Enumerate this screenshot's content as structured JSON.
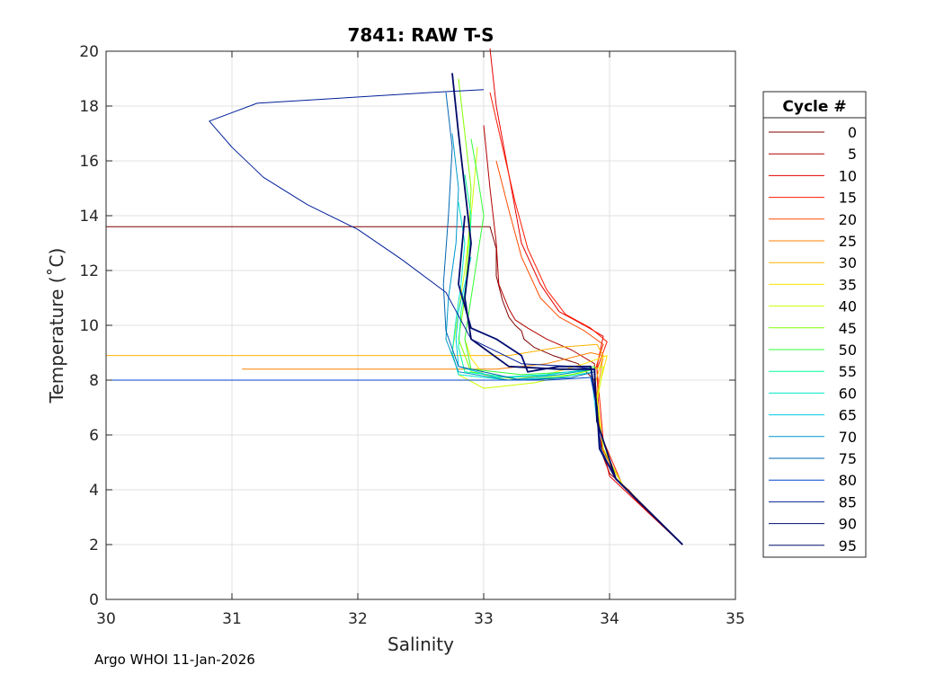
{
  "chart_data": {
    "type": "line",
    "title": "7841: RAW T-S",
    "xlabel": "Salinity",
    "ylabel": "Temperature (˚C)",
    "xlim": [
      30,
      35
    ],
    "ylim": [
      0,
      20
    ],
    "xticks": [
      30,
      31,
      32,
      33,
      34,
      35
    ],
    "yticks": [
      0,
      2,
      4,
      6,
      8,
      10,
      12,
      14,
      16,
      18,
      20
    ],
    "grid": true,
    "legend_title": "Cycle #",
    "legend_position": "right",
    "series": [
      {
        "name": "0",
        "color": "#7f0000",
        "x": [
          30.0,
          33.05,
          33.1,
          33.1,
          33.15,
          33.2,
          33.25,
          33.3,
          33.32,
          33.4,
          33.55,
          33.75,
          33.88,
          33.9,
          33.95,
          34.0,
          34.15,
          34.35,
          34.58
        ],
        "y": [
          13.6,
          13.6,
          12.8,
          11.8,
          10.9,
          10.3,
          10.0,
          9.8,
          9.5,
          9.2,
          8.9,
          8.6,
          8.0,
          6.5,
          5.2,
          4.6,
          4.0,
          3.0,
          2.0
        ]
      },
      {
        "name": "5",
        "color": "#b20000",
        "x": [
          33.0,
          33.05,
          33.1,
          33.12,
          33.2,
          33.25,
          33.35,
          33.5,
          33.7,
          33.88,
          33.9,
          33.95,
          34.05,
          34.3,
          34.58
        ],
        "y": [
          17.3,
          15.0,
          13.0,
          11.5,
          10.6,
          10.2,
          9.9,
          9.5,
          9.1,
          8.6,
          7.0,
          5.5,
          4.4,
          3.2,
          2.0
        ]
      },
      {
        "name": "10",
        "color": "#e60000",
        "x": [
          33.05,
          33.1,
          33.2,
          33.3,
          33.45,
          33.6,
          33.8,
          33.95,
          33.9,
          33.92,
          34.0,
          34.3,
          34.58
        ],
        "y": [
          20.1,
          18.0,
          15.5,
          13.0,
          11.5,
          10.5,
          10.0,
          9.6,
          8.5,
          6.0,
          4.5,
          3.2,
          2.0
        ]
      },
      {
        "name": "15",
        "color": "#ff1a00",
        "x": [
          33.05,
          33.15,
          33.25,
          33.35,
          33.5,
          33.65,
          33.85,
          33.98,
          33.9,
          33.95,
          34.1,
          34.58
        ],
        "y": [
          18.5,
          16.5,
          14.5,
          12.8,
          11.3,
          10.4,
          9.9,
          9.4,
          8.4,
          5.8,
          4.2,
          2.0
        ]
      },
      {
        "name": "20",
        "color": "#ff4d00",
        "x": [
          33.1,
          33.2,
          33.3,
          33.45,
          33.6,
          33.8,
          33.95,
          33.88,
          33.92,
          34.05,
          34.58
        ],
        "y": [
          16.0,
          14.2,
          12.5,
          11.0,
          10.3,
          9.8,
          9.3,
          8.3,
          6.2,
          4.4,
          2.0
        ]
      },
      {
        "name": "25",
        "color": "#ff8000",
        "x": [
          31.08,
          33.1,
          33.5,
          33.85,
          33.95,
          33.9,
          33.95,
          34.1,
          34.58
        ],
        "y": [
          8.4,
          8.4,
          8.6,
          9.0,
          8.9,
          7.5,
          5.5,
          4.2,
          2.0
        ]
      },
      {
        "name": "30",
        "color": "#ffb300",
        "x": [
          30.0,
          33.2,
          33.6,
          33.9,
          33.95,
          33.88,
          33.92,
          34.1,
          34.58
        ],
        "y": [
          8.9,
          8.9,
          9.2,
          9.3,
          8.9,
          7.8,
          5.6,
          4.2,
          2.0
        ]
      },
      {
        "name": "35",
        "color": "#ffe600",
        "x": [
          32.85,
          32.9,
          33.0,
          33.2,
          33.5,
          33.8,
          33.98,
          33.9,
          33.95,
          34.1,
          34.58
        ],
        "y": [
          9.5,
          8.8,
          8.2,
          8.0,
          8.2,
          8.6,
          8.9,
          7.4,
          5.5,
          4.2,
          2.0
        ]
      },
      {
        "name": "40",
        "color": "#ccff00",
        "x": [
          32.95,
          32.9,
          32.85,
          32.8,
          32.75,
          32.8,
          33.0,
          33.4,
          33.8,
          33.95,
          33.9,
          33.95,
          34.1,
          34.58
        ],
        "y": [
          16.5,
          14.0,
          12.0,
          10.5,
          9.0,
          8.2,
          7.7,
          7.9,
          8.3,
          8.5,
          7.2,
          5.5,
          4.2,
          2.0
        ]
      },
      {
        "name": "45",
        "color": "#80ff00",
        "x": [
          32.8,
          32.85,
          32.9,
          32.88,
          32.85,
          32.8,
          32.9,
          33.3,
          33.7,
          33.88,
          33.9,
          34.05,
          34.58
        ],
        "y": [
          19.0,
          17.0,
          15.0,
          13.0,
          11.0,
          9.5,
          8.3,
          8.0,
          8.2,
          8.4,
          6.5,
          4.4,
          2.0
        ]
      },
      {
        "name": "50",
        "color": "#33ff33",
        "x": [
          32.9,
          32.95,
          33.0,
          32.95,
          32.9,
          32.85,
          32.9,
          33.3,
          33.7,
          33.88,
          33.9,
          34.05,
          34.58
        ],
        "y": [
          16.8,
          15.5,
          14.0,
          12.5,
          11.0,
          9.5,
          8.4,
          8.2,
          8.3,
          8.5,
          6.5,
          4.4,
          2.0
        ]
      },
      {
        "name": "55",
        "color": "#00ff99",
        "x": [
          32.85,
          32.9,
          32.88,
          32.82,
          32.8,
          32.85,
          33.2,
          33.6,
          33.88,
          33.9,
          34.05,
          34.58
        ],
        "y": [
          15.5,
          14.0,
          12.0,
          10.5,
          9.2,
          8.3,
          8.1,
          8.2,
          8.4,
          6.5,
          4.4,
          2.0
        ]
      },
      {
        "name": "60",
        "color": "#00e6cc",
        "x": [
          32.8,
          32.85,
          32.82,
          32.78,
          32.75,
          32.8,
          33.2,
          33.6,
          33.88,
          33.9,
          34.05,
          34.58
        ],
        "y": [
          14.5,
          13.0,
          11.5,
          10.2,
          9.0,
          8.2,
          8.0,
          8.1,
          8.3,
          6.5,
          4.4,
          2.0
        ]
      },
      {
        "name": "65",
        "color": "#00cce6",
        "x": [
          32.9,
          32.85,
          32.8,
          32.78,
          32.8,
          33.1,
          33.5,
          33.85,
          33.9,
          34.05,
          34.58
        ],
        "y": [
          12.5,
          11.5,
          10.5,
          9.5,
          8.5,
          8.1,
          8.2,
          8.4,
          6.5,
          4.4,
          2.0
        ]
      },
      {
        "name": "70",
        "color": "#0099cc",
        "x": [
          32.75,
          32.8,
          32.78,
          32.72,
          32.7,
          32.8,
          33.2,
          33.6,
          33.88,
          33.9,
          34.05,
          34.58
        ],
        "y": [
          17.0,
          15.0,
          13.0,
          11.0,
          9.5,
          8.3,
          8.0,
          8.2,
          8.4,
          6.5,
          4.4,
          2.0
        ]
      },
      {
        "name": "75",
        "color": "#0066b3",
        "x": [
          32.7,
          32.75,
          32.72,
          32.68,
          32.7,
          32.8,
          33.3,
          33.7,
          33.88,
          33.9,
          34.05,
          34.58
        ],
        "y": [
          18.5,
          16.5,
          14.0,
          11.5,
          9.8,
          8.5,
          8.0,
          8.1,
          8.3,
          6.5,
          4.4,
          2.0
        ]
      },
      {
        "name": "80",
        "color": "#0044cc",
        "x": [
          30.0,
          32.8,
          33.0,
          33.5,
          33.85,
          33.9,
          33.93,
          34.05,
          34.58
        ],
        "y": [
          8.0,
          8.0,
          8.0,
          8.0,
          8.1,
          7.0,
          5.5,
          4.4,
          2.0
        ]
      },
      {
        "name": "85",
        "color": "#001f99",
        "x": [
          33.0,
          32.6,
          31.2,
          30.82,
          31.0,
          31.25,
          31.6,
          32.0,
          32.35,
          32.7,
          32.9,
          33.3,
          33.7,
          33.88,
          33.9,
          34.05,
          34.58
        ],
        "y": [
          18.6,
          18.5,
          18.1,
          17.45,
          16.5,
          15.4,
          14.4,
          13.5,
          12.4,
          11.2,
          9.5,
          8.6,
          8.5,
          8.4,
          6.5,
          4.4,
          2.0
        ]
      },
      {
        "name": "90",
        "color": "#000d73",
        "x": [
          32.85,
          32.8,
          32.9,
          33.1,
          33.3,
          33.35,
          33.6,
          33.85,
          33.9,
          33.92,
          34.05,
          34.58
        ],
        "y": [
          14.0,
          11.5,
          9.9,
          9.5,
          8.9,
          8.3,
          8.5,
          8.5,
          7.0,
          5.5,
          4.4,
          2.0
        ]
      },
      {
        "name": "95",
        "color": "#000a66",
        "x": [
          32.75,
          32.8,
          32.85,
          32.9,
          32.85,
          32.9,
          33.2,
          33.6,
          33.88,
          33.9,
          34.05,
          34.58
        ],
        "y": [
          19.2,
          17.0,
          15.0,
          13.0,
          11.0,
          9.5,
          8.5,
          8.4,
          8.4,
          6.5,
          4.4,
          2.0
        ]
      }
    ]
  },
  "footer": {
    "text": "Argo WHOI 11-Jan-2026"
  }
}
